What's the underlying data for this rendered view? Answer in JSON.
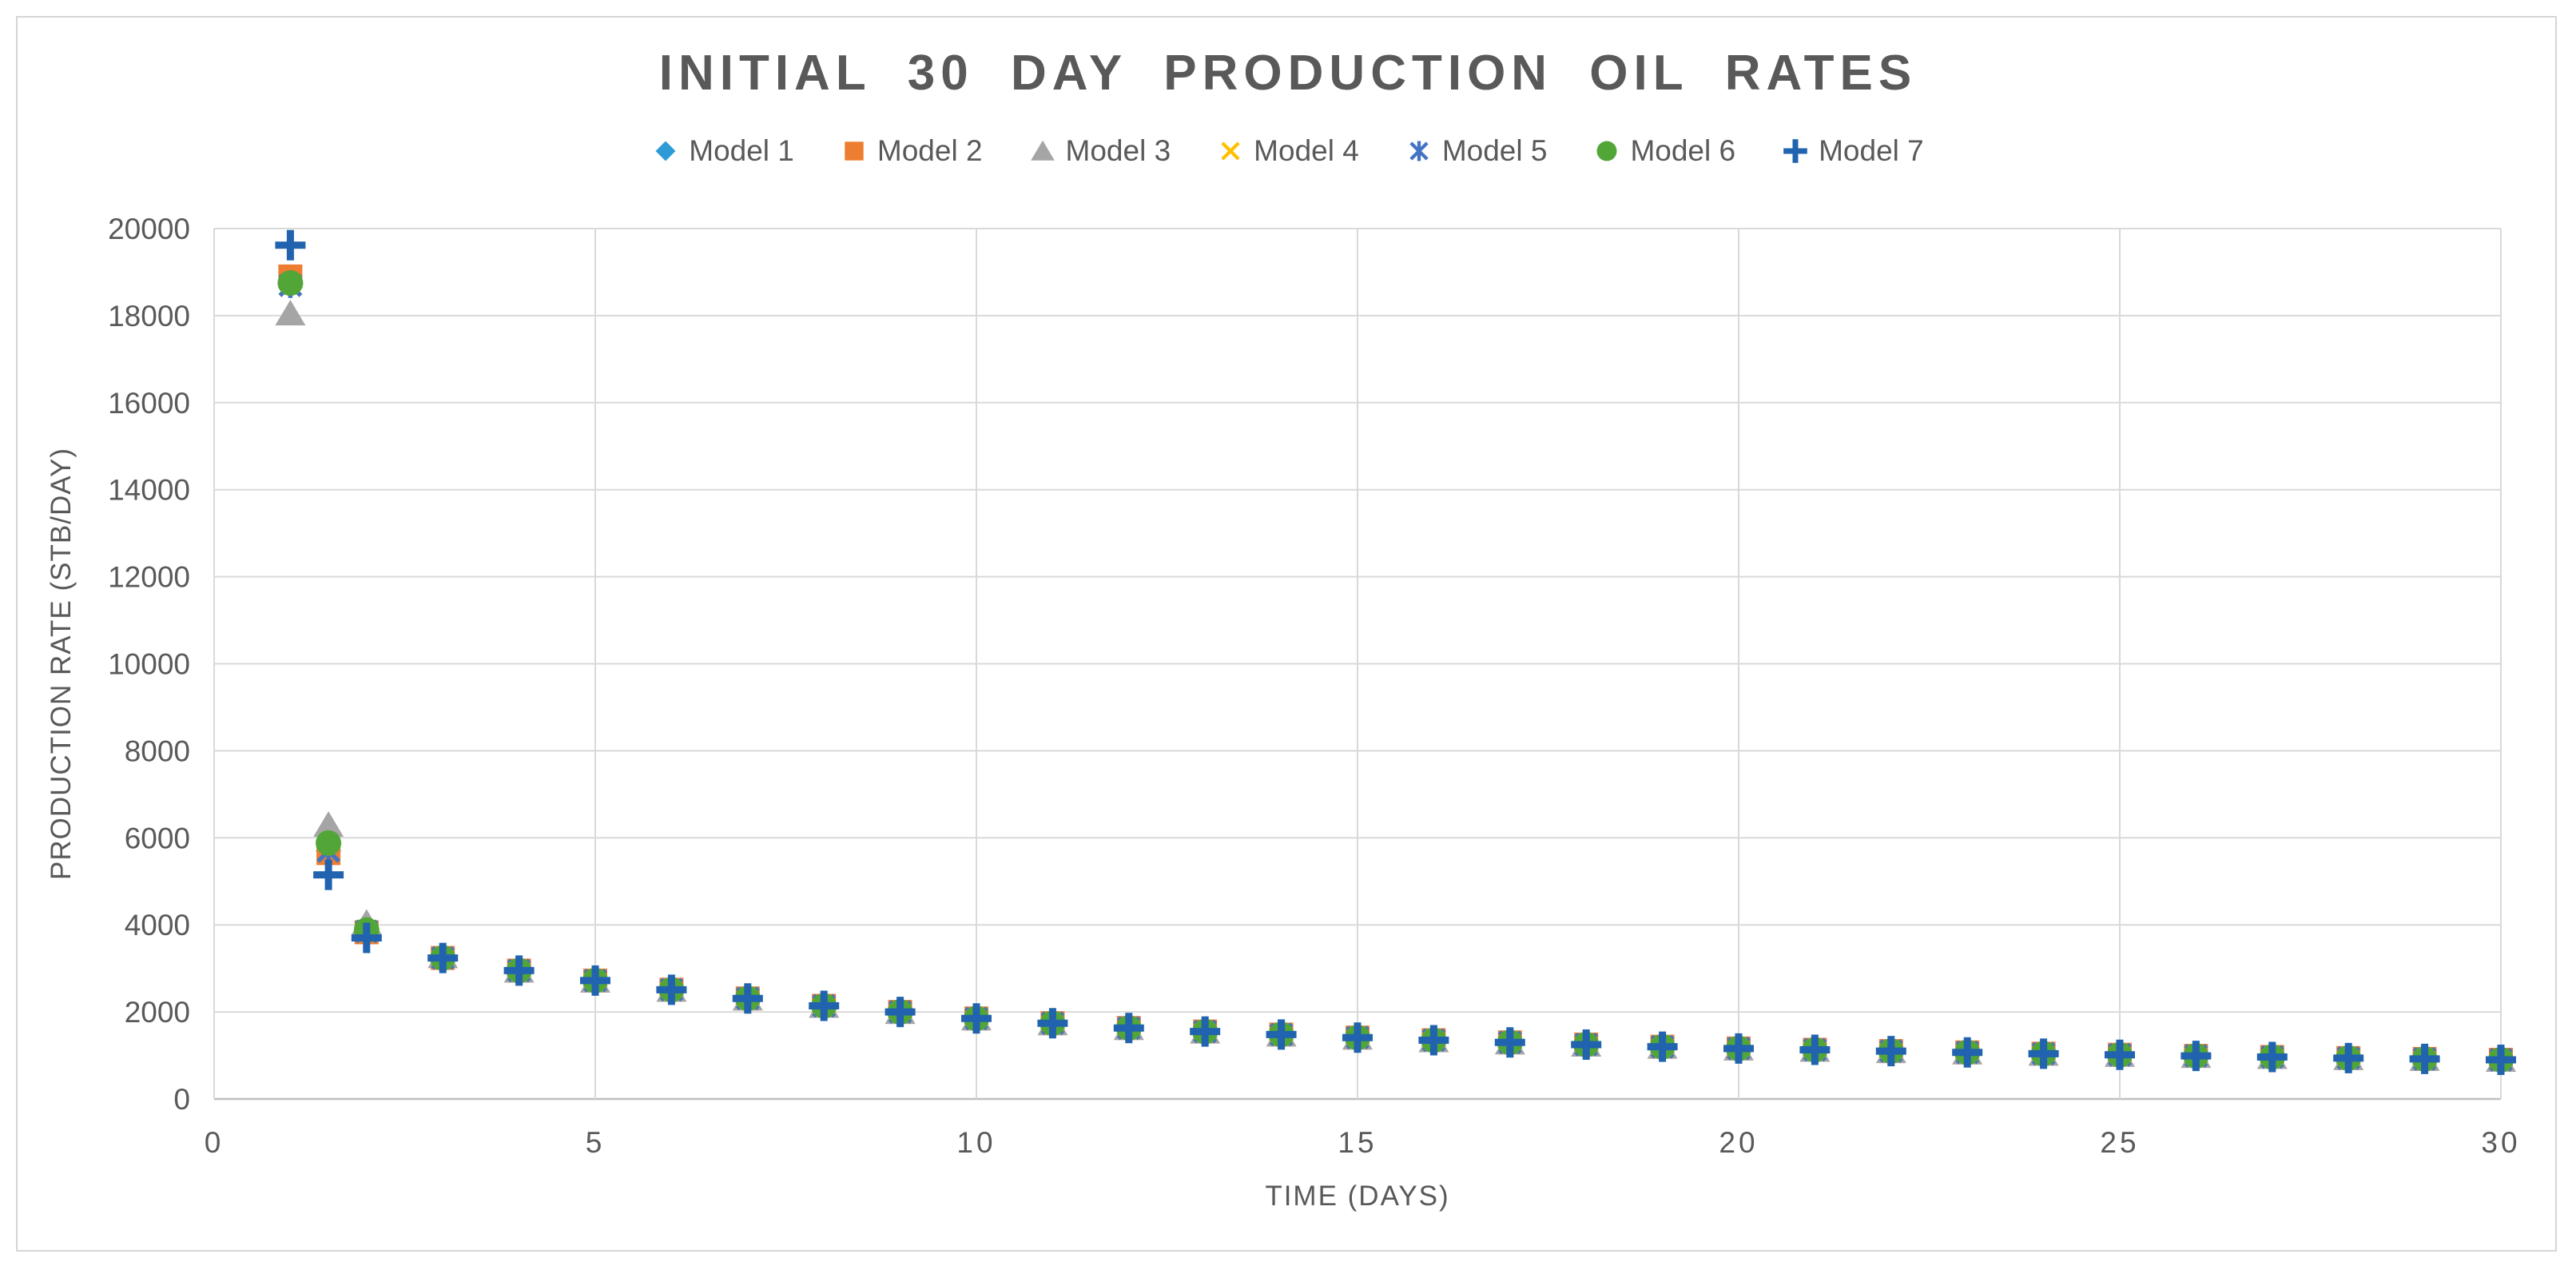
{
  "title": "INITIAL 30 DAY PRODUCTION OIL RATES",
  "colors": {
    "title_text": "#595959",
    "axis_text": "#595959",
    "gridline": "#D9D9D9",
    "axis_line": "#BFBFBF",
    "outer_frame": "#D5D5D5",
    "background": "#FFFFFF"
  },
  "chart_data": {
    "type": "scatter",
    "title": "INITIAL 30 DAY PRODUCTION OIL RATES",
    "xlabel": "TIME (DAYS)",
    "ylabel": "PRODUCTION RATE (STB/DAY)",
    "xlim": [
      0,
      30
    ],
    "ylim": [
      0,
      20000
    ],
    "x_ticks": [
      0,
      5,
      10,
      15,
      20,
      25,
      30
    ],
    "y_ticks": [
      0,
      2000,
      4000,
      6000,
      8000,
      10000,
      12000,
      14000,
      16000,
      18000,
      20000
    ],
    "grid": true,
    "legend_position": "top",
    "x": [
      1,
      1.5,
      2,
      3,
      4,
      5,
      6,
      7,
      8,
      9,
      10,
      11,
      12,
      13,
      14,
      15,
      16,
      17,
      18,
      19,
      20,
      21,
      22,
      23,
      24,
      25,
      26,
      27,
      28,
      29,
      30
    ],
    "series": [
      {
        "name": "Model 1",
        "marker": "diamond",
        "color": "#2E9BD6",
        "values": [
          18700,
          5700,
          3850,
          3240,
          2950,
          2720,
          2510,
          2310,
          2140,
          2000,
          1850,
          1740,
          1630,
          1550,
          1480,
          1410,
          1350,
          1300,
          1250,
          1200,
          1160,
          1130,
          1100,
          1070,
          1040,
          1015,
          990,
          965,
          940,
          920,
          900
        ]
      },
      {
        "name": "Model 2",
        "marker": "square",
        "color": "#ED7D31",
        "values": [
          18900,
          5650,
          3830,
          3240,
          2950,
          2720,
          2510,
          2310,
          2140,
          2000,
          1850,
          1740,
          1630,
          1550,
          1480,
          1410,
          1350,
          1300,
          1250,
          1200,
          1160,
          1130,
          1100,
          1070,
          1040,
          1015,
          990,
          965,
          940,
          920,
          900
        ]
      },
      {
        "name": "Model 3",
        "marker": "triangle",
        "color": "#A5A5A5",
        "values": [
          18050,
          6300,
          4050,
          3280,
          2950,
          2720,
          2510,
          2310,
          2140,
          2000,
          1850,
          1740,
          1630,
          1550,
          1480,
          1410,
          1350,
          1300,
          1250,
          1200,
          1160,
          1130,
          1100,
          1070,
          1040,
          1015,
          990,
          965,
          940,
          920,
          900
        ]
      },
      {
        "name": "Model 4",
        "marker": "x",
        "color": "#FFC000",
        "values": [
          18700,
          5700,
          3850,
          3240,
          2950,
          2720,
          2510,
          2310,
          2140,
          2000,
          1850,
          1740,
          1630,
          1550,
          1480,
          1410,
          1350,
          1300,
          1250,
          1200,
          1160,
          1130,
          1100,
          1070,
          1040,
          1015,
          990,
          965,
          940,
          920,
          900
        ]
      },
      {
        "name": "Model 5",
        "marker": "asterisk",
        "color": "#4472C4",
        "values": [
          18700,
          5700,
          3850,
          3240,
          2950,
          2720,
          2510,
          2310,
          2140,
          2000,
          1850,
          1740,
          1630,
          1550,
          1480,
          1410,
          1350,
          1300,
          1250,
          1200,
          1160,
          1130,
          1100,
          1070,
          1040,
          1015,
          990,
          965,
          940,
          920,
          900
        ]
      },
      {
        "name": "Model 6",
        "marker": "circle",
        "color": "#52A637",
        "values": [
          18750,
          5880,
          3880,
          3240,
          2950,
          2720,
          2510,
          2310,
          2140,
          2000,
          1850,
          1740,
          1630,
          1550,
          1480,
          1410,
          1350,
          1300,
          1250,
          1200,
          1160,
          1130,
          1100,
          1070,
          1040,
          1015,
          990,
          965,
          940,
          920,
          900
        ]
      },
      {
        "name": "Model 7",
        "marker": "plus",
        "color": "#2163AE",
        "values": [
          19620,
          5150,
          3700,
          3240,
          2950,
          2720,
          2510,
          2310,
          2140,
          2000,
          1850,
          1740,
          1630,
          1550,
          1480,
          1410,
          1350,
          1300,
          1250,
          1200,
          1160,
          1130,
          1100,
          1070,
          1040,
          1015,
          990,
          965,
          940,
          920,
          900
        ]
      }
    ]
  }
}
